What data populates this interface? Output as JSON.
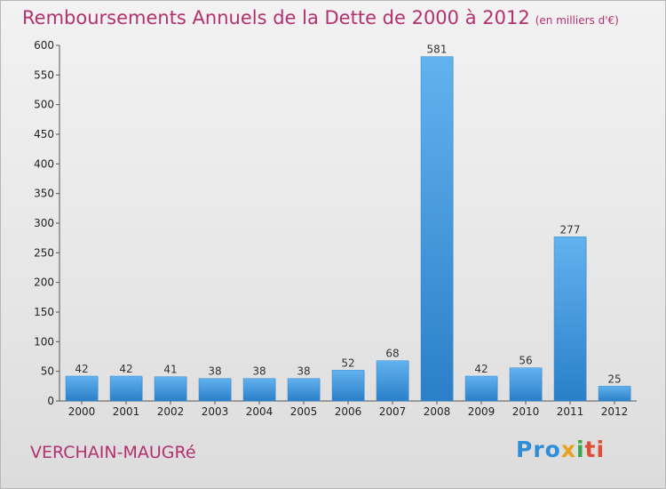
{
  "title": "Remboursements Annuels de la Dette de 2000 à 2012",
  "subtitle": "(en milliers d'€)",
  "commune": "VERCHAIN-MAUGRé",
  "logo": {
    "p1": "Pro",
    "p2": "x",
    "p3": "i",
    "p4": "ti"
  },
  "colors": {
    "title": "#b4306e",
    "bar_light": "#62b2ee",
    "bar_dark": "#2a7fc8"
  },
  "chart_data": {
    "type": "bar",
    "categories": [
      "2000",
      "2001",
      "2002",
      "2003",
      "2004",
      "2005",
      "2006",
      "2007",
      "2008",
      "2009",
      "2010",
      "2011",
      "2012"
    ],
    "values": [
      42,
      42,
      41,
      38,
      38,
      38,
      52,
      68,
      581,
      42,
      56,
      277,
      25
    ],
    "ylim": [
      0,
      600
    ],
    "yticks": [
      0,
      50,
      100,
      150,
      200,
      250,
      300,
      350,
      400,
      450,
      500,
      550,
      600
    ],
    "grid": false,
    "legend": "none",
    "title": "Remboursements Annuels de la Dette de 2000 à 2012",
    "xlabel": "",
    "ylabel": ""
  }
}
